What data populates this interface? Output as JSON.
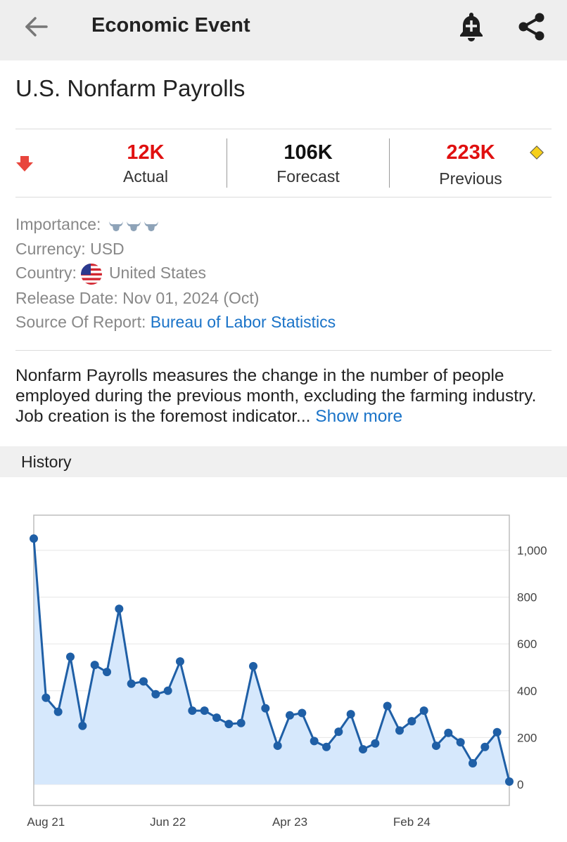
{
  "appbar": {
    "title": "Economic Event",
    "back_icon": "arrow-left-icon",
    "bell_icon": "bell-plus-icon",
    "share_icon": "share-icon"
  },
  "event": {
    "title": "U.S. Nonfarm Payrolls"
  },
  "stats": {
    "trend_icon": "arrow-down-icon",
    "actual": {
      "value": "12K",
      "label": "Actual",
      "color": "#e01010"
    },
    "forecast": {
      "value": "106K",
      "label": "Forecast",
      "color": "#111111"
    },
    "previous": {
      "value": "223K",
      "label": "Previous",
      "color": "#e01010"
    },
    "revision_icon": "diamond-icon"
  },
  "info": {
    "importance_label": "Importance:",
    "importance_level": 3,
    "importance_icon": "bull-icon",
    "currency": "Currency: USD",
    "country_label": "Country:",
    "country_value": "United States",
    "release_date": "Release Date: Nov 01, 2024 (Oct)",
    "source_label": "Source Of Report:",
    "source_link": "Bureau of Labor Statistics"
  },
  "description": {
    "text": "Nonfarm Payrolls measures the change in the number of people employed during the previous month, excluding the farming industry. Job creation is the foremost indicator...",
    "show_more": "Show more"
  },
  "history": {
    "title": "History"
  },
  "colors": {
    "accent_blue": "#1a73c8",
    "line_blue": "#1f5fa6",
    "area_fill": "#d6e8fc",
    "negative_red": "#e01010"
  },
  "chart_data": {
    "type": "area",
    "x_tick_labels": [
      "Aug 21",
      "Jun 22",
      "Apr 23",
      "Feb 24"
    ],
    "x_tick_indices": [
      1,
      11,
      21,
      31
    ],
    "y_ticks": [
      0,
      200,
      400,
      600,
      800,
      1000
    ],
    "y_tick_labels": [
      "0",
      "200",
      "400",
      "600",
      "800",
      "1,000"
    ],
    "ylim": [
      -90,
      1150
    ],
    "grid": true,
    "legend": "none",
    "values": [
      1050,
      370,
      310,
      545,
      250,
      510,
      480,
      750,
      430,
      440,
      385,
      400,
      525,
      315,
      315,
      285,
      258,
      262,
      505,
      325,
      165,
      295,
      305,
      185,
      160,
      225,
      300,
      150,
      175,
      335,
      230,
      270,
      315,
      165,
      220,
      180,
      90,
      160,
      223,
      12
    ]
  }
}
